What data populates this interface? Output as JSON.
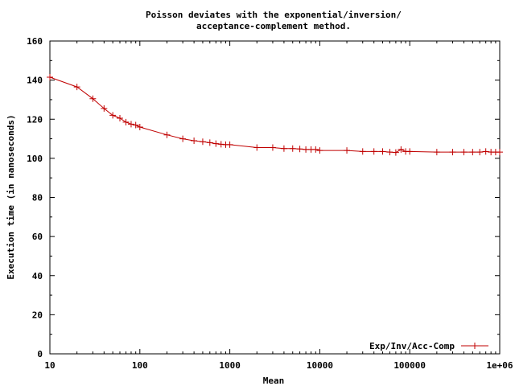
{
  "chart_data": {
    "type": "line",
    "title": "Poisson deviates with the exponential/inversion/",
    "subtitle": "acceptance-complement method.",
    "xlabel": "Mean",
    "ylabel": "Execution time (in nanoseconds)",
    "x_scale": "log",
    "xlim": [
      10,
      1000000
    ],
    "ylim": [
      0,
      160
    ],
    "x_ticks": [
      10,
      100,
      1000,
      10000,
      100000,
      1000000
    ],
    "x_tick_labels": [
      "10",
      "100",
      "1000",
      "10000",
      "100000",
      "1e+06"
    ],
    "y_ticks": [
      0,
      20,
      40,
      60,
      80,
      100,
      120,
      140,
      160
    ],
    "y_tick_labels": [
      "0",
      "20",
      "40",
      "60",
      "80",
      "100",
      "120",
      "140",
      "160"
    ],
    "grid": false,
    "legend_position": "bottom-right",
    "series": [
      {
        "name": "Exp/Inv/Acc-Comp",
        "color": "#c00000",
        "x": [
          10,
          20,
          30,
          40,
          50,
          60,
          70,
          80,
          90,
          100,
          200,
          300,
          400,
          500,
          600,
          700,
          800,
          900,
          1000,
          2000,
          3000,
          4000,
          5000,
          6000,
          7000,
          8000,
          9000,
          10000,
          20000,
          30000,
          40000,
          50000,
          60000,
          70000,
          80000,
          90000,
          100000,
          200000,
          300000,
          400000,
          500000,
          600000,
          700000,
          800000,
          900000,
          1000000
        ],
        "y": [
          141.5,
          136.5,
          130.5,
          125.5,
          122,
          120.5,
          118.5,
          117.5,
          117,
          116,
          112,
          110,
          109,
          108.5,
          108,
          107.5,
          107.2,
          107,
          107,
          105.5,
          105.5,
          105,
          105,
          104.8,
          104.5,
          104.5,
          104.5,
          104,
          104,
          103.5,
          103.5,
          103.5,
          103.2,
          103,
          104.5,
          103.5,
          103.5,
          103.2,
          103.2,
          103.2,
          103.2,
          103.2,
          103.5,
          103.2,
          103.2,
          103.2
        ]
      }
    ]
  }
}
